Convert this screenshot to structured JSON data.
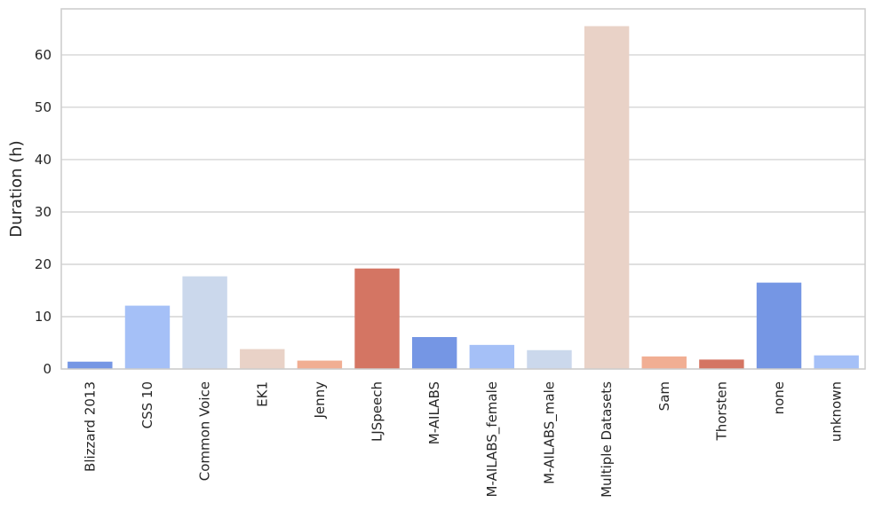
{
  "chart_data": {
    "type": "bar",
    "title": "",
    "xlabel": "",
    "ylabel": "Duration (h)",
    "categories": [
      "Blizzard 2013",
      "CSS 10",
      "Common Voice",
      "EK1",
      "Jenny",
      "LJSpeech",
      "M-AILABS",
      "M-AILABS_female",
      "M-AILABS_male",
      "Multiple Datasets",
      "Sam",
      "Thorsten",
      "none",
      "unknown"
    ],
    "values": [
      1.4,
      12.1,
      17.7,
      3.8,
      1.6,
      19.2,
      6.1,
      4.6,
      3.6,
      65.5,
      2.4,
      1.8,
      16.5,
      2.6
    ],
    "colors": [
      "#7596e4",
      "#a5c0f7",
      "#cbd8ec",
      "#e9d2c7",
      "#f1ae93",
      "#d47563",
      "#7596e4",
      "#a5c0f7",
      "#cbd8ec",
      "#e9d2c7",
      "#f1ae93",
      "#d47563",
      "#7596e4",
      "#a5c0f7"
    ],
    "ylim": [
      0,
      68.8
    ],
    "yticks": [
      "0",
      "10",
      "20",
      "30",
      "40",
      "50",
      "60"
    ],
    "grid": true,
    "legend": "none"
  }
}
